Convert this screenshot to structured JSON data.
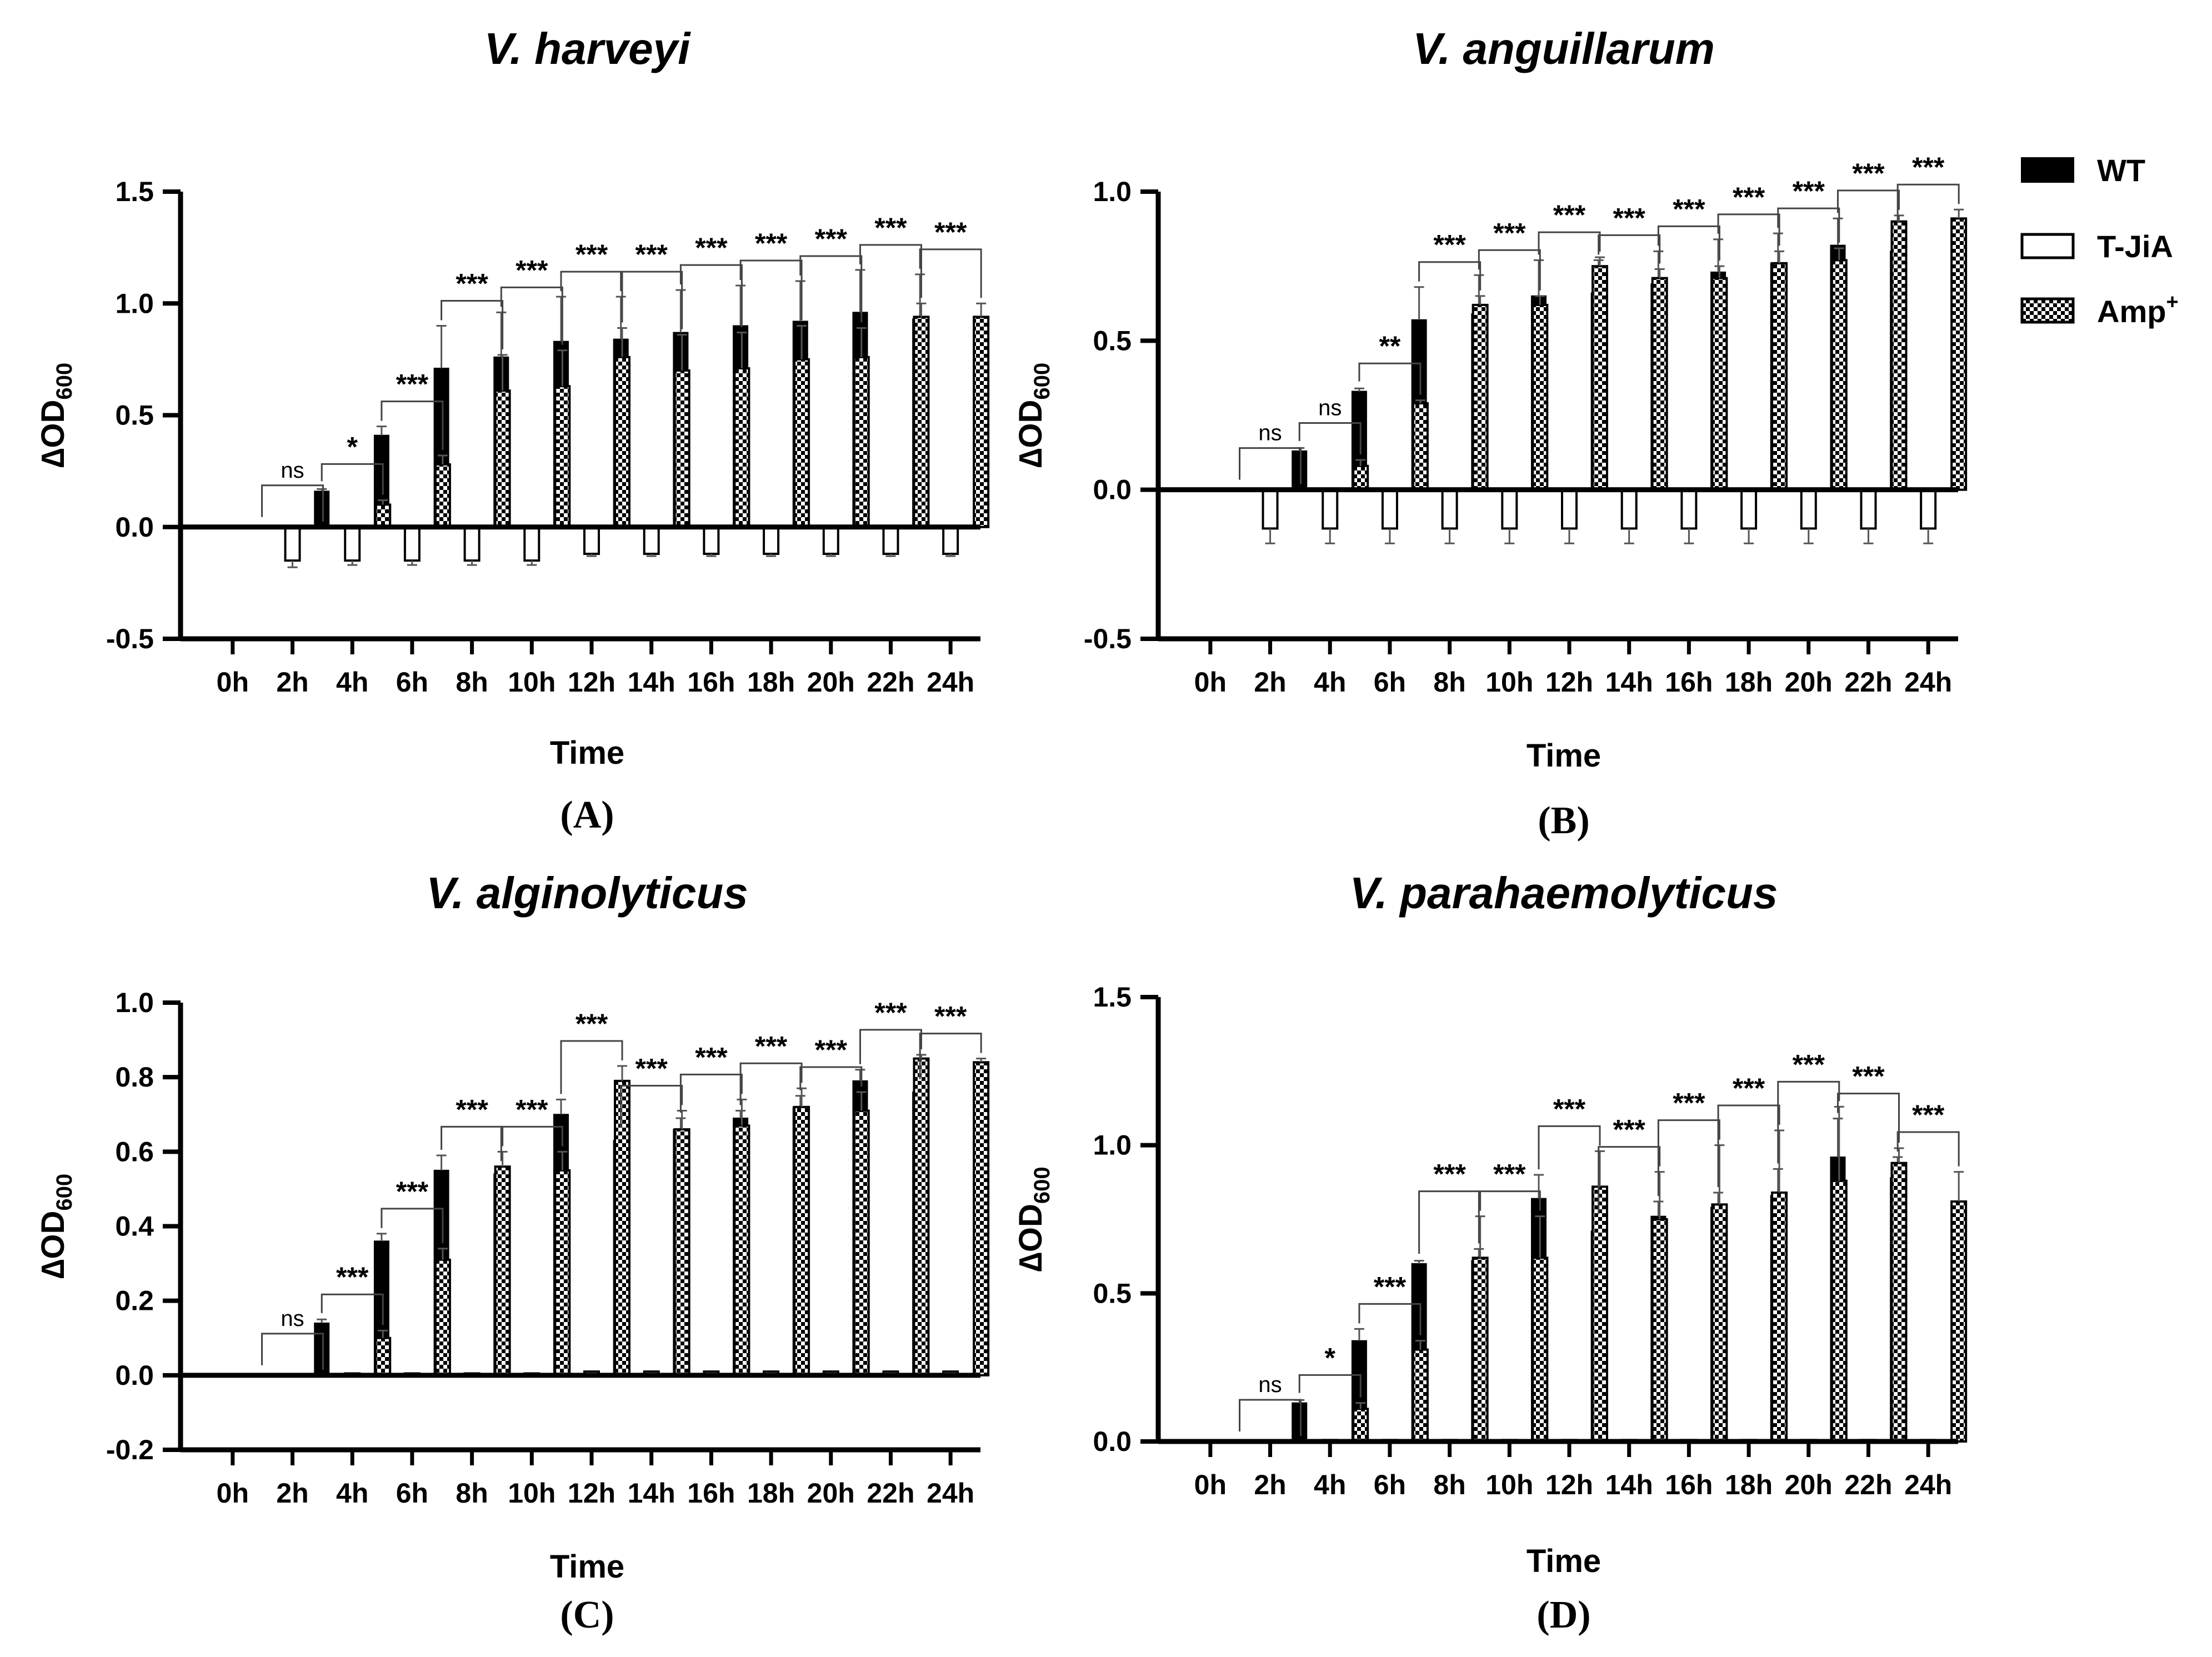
{
  "colors": {
    "wt": "#000000",
    "tjia": "#ffffff",
    "amp": "#000000",
    "axis": "#000000",
    "background": "#ffffff"
  },
  "legend": {
    "items": [
      {
        "key": "wt",
        "label": "WT",
        "pattern": "solid"
      },
      {
        "key": "tjia",
        "label": "T-JiA",
        "pattern": "open"
      },
      {
        "key": "amp",
        "label": "Amp",
        "sup": "+",
        "pattern": "checker"
      }
    ]
  },
  "chart_data": [
    {
      "id": "A",
      "panel_label": "(A)",
      "type": "bar",
      "title": "V. harveyi",
      "xlabel": "Time",
      "ylabel": "∆OD",
      "ylabel_sub": "600",
      "ylim": [
        -0.5,
        1.5
      ],
      "yticks": [
        -0.5,
        0.0,
        0.5,
        1.0,
        1.5
      ],
      "ytick_labels": [
        "-0.5",
        "0.0",
        "0.5",
        "1.0",
        "1.5"
      ],
      "categories": [
        "0h",
        "2h",
        "4h",
        "6h",
        "8h",
        "10h",
        "12h",
        "14h",
        "16h",
        "18h",
        "20h",
        "22h",
        "24h"
      ],
      "series": [
        {
          "name": "WT",
          "values": [
            0,
            0,
            0.16,
            0.41,
            0.71,
            0.76,
            0.83,
            0.84,
            0.87,
            0.9,
            0.92,
            0.96,
            0.93
          ],
          "errors": [
            0,
            0,
            0.01,
            0.04,
            0.19,
            0.2,
            0.2,
            0.19,
            0.19,
            0.18,
            0.18,
            0.19,
            0.2
          ]
        },
        {
          "name": "T-JiA",
          "values": [
            0,
            -0.15,
            -0.15,
            -0.15,
            -0.15,
            -0.15,
            -0.12,
            -0.12,
            -0.12,
            -0.12,
            -0.12,
            -0.12,
            -0.12
          ],
          "errors": [
            0,
            0.03,
            0.02,
            0.02,
            0.02,
            0.02,
            0.01,
            0.01,
            0.01,
            0.01,
            0.01,
            0.01,
            0.01
          ]
        },
        {
          "name": "Amp+",
          "values": [
            0,
            0,
            0.1,
            0.28,
            0.61,
            0.63,
            0.76,
            0.7,
            0.71,
            0.75,
            0.76,
            0.94,
            0.94
          ],
          "errors": [
            0,
            0,
            0.02,
            0.04,
            0.16,
            0.16,
            0.13,
            0.16,
            0.16,
            0.15,
            0.13,
            0.06,
            0.06
          ]
        }
      ],
      "significance": [
        "",
        "ns",
        "*",
        "***",
        "***",
        "***",
        "***",
        "***",
        "***",
        "***",
        "***",
        "***",
        "***"
      ]
    },
    {
      "id": "B",
      "panel_label": "(B)",
      "type": "bar",
      "title": "V. anguillarum",
      "xlabel": "Time",
      "ylabel": "∆OD",
      "ylabel_sub": "600",
      "ylim": [
        -0.5,
        1.0
      ],
      "yticks": [
        -0.5,
        0.0,
        0.5,
        1.0
      ],
      "ytick_labels": [
        "-0.5",
        "0.0",
        "0.5",
        "1.0"
      ],
      "categories": [
        "0h",
        "2h",
        "4h",
        "6h",
        "8h",
        "10h",
        "12h",
        "14h",
        "16h",
        "18h",
        "20h",
        "22h",
        "24h"
      ],
      "series": [
        {
          "name": "WT",
          "values": [
            0,
            0,
            0.13,
            0.33,
            0.57,
            0.59,
            0.65,
            0.66,
            0.69,
            0.73,
            0.76,
            0.82,
            0.8
          ],
          "errors": [
            0,
            0,
            0.01,
            0.01,
            0.11,
            0.13,
            0.12,
            0.11,
            0.11,
            0.11,
            0.1,
            0.09,
            0.08
          ]
        },
        {
          "name": "T-JiA",
          "values": [
            0,
            -0.13,
            -0.13,
            -0.13,
            -0.13,
            -0.13,
            -0.13,
            -0.13,
            -0.13,
            -0.13,
            -0.13,
            -0.13,
            -0.13
          ],
          "errors": [
            0,
            0.05,
            0.05,
            0.05,
            0.05,
            0.05,
            0.05,
            0.05,
            0.05,
            0.05,
            0.05,
            0.05,
            0.05
          ]
        },
        {
          "name": "Amp+",
          "values": [
            0,
            0,
            0.08,
            0.29,
            0.62,
            0.62,
            0.75,
            0.71,
            0.71,
            0.76,
            0.77,
            0.9,
            0.91
          ],
          "errors": [
            0,
            0,
            0.02,
            0.01,
            0.03,
            0.03,
            0.03,
            0.03,
            0.04,
            0.04,
            0.04,
            0.02,
            0.03
          ]
        }
      ],
      "significance": [
        "",
        "ns",
        "ns",
        "**",
        "***",
        "***",
        "***",
        "***",
        "***",
        "***",
        "***",
        "***",
        "***"
      ]
    },
    {
      "id": "C",
      "panel_label": "(C)",
      "type": "bar",
      "title": "V. alginolyticus",
      "xlabel": "Time",
      "ylabel": "∆OD",
      "ylabel_sub": "600",
      "ylim": [
        -0.2,
        1.0
      ],
      "yticks": [
        -0.2,
        0.0,
        0.2,
        0.4,
        0.6,
        0.8,
        1.0
      ],
      "ytick_labels": [
        "-0.2",
        "0.0",
        "0.2",
        "0.4",
        "0.6",
        "0.8",
        "1.0"
      ],
      "categories": [
        "0h",
        "2h",
        "4h",
        "6h",
        "8h",
        "10h",
        "12h",
        "14h",
        "16h",
        "18h",
        "20h",
        "22h",
        "24h"
      ],
      "series": [
        {
          "name": "WT",
          "values": [
            0,
            0,
            0.14,
            0.36,
            0.55,
            0.54,
            0.7,
            0.63,
            0.66,
            0.69,
            0.72,
            0.79,
            0.76
          ],
          "errors": [
            0,
            0,
            0.01,
            0.02,
            0.04,
            0.02,
            0.04,
            0.02,
            0.03,
            0.02,
            0.03,
            0.03,
            0.02
          ]
        },
        {
          "name": "T-JiA",
          "values": [
            0,
            0,
            0.005,
            0.005,
            0.005,
            0.005,
            0.01,
            0.01,
            0.01,
            0.01,
            0.01,
            0.01,
            0.01
          ],
          "errors": [
            0,
            0,
            0,
            0,
            0,
            0,
            0,
            0,
            0,
            0,
            0,
            0,
            0
          ]
        },
        {
          "name": "Amp+",
          "values": [
            0,
            0,
            0.1,
            0.31,
            0.56,
            0.55,
            0.79,
            0.66,
            0.67,
            0.72,
            0.71,
            0.85,
            0.84
          ],
          "errors": [
            0,
            0,
            0.02,
            0.03,
            0.04,
            0.05,
            0.04,
            0.05,
            0.07,
            0.05,
            0.05,
            0.01,
            0.01
          ]
        }
      ],
      "significance": [
        "",
        "ns",
        "***",
        "***",
        "***",
        "***",
        "***",
        "***",
        "***",
        "***",
        "***",
        "***",
        "***"
      ]
    },
    {
      "id": "D",
      "panel_label": "(D)",
      "type": "bar",
      "title": "V. parahaemolyticus",
      "xlabel": "Time",
      "ylabel": "∆OD",
      "ylabel_sub": "600",
      "ylim": [
        0.0,
        1.5
      ],
      "yticks": [
        0.0,
        0.5,
        1.0,
        1.5
      ],
      "ytick_labels": [
        "0.0",
        "0.5",
        "1.0",
        "1.5"
      ],
      "categories": [
        "0h",
        "2h",
        "4h",
        "6h",
        "8h",
        "10h",
        "12h",
        "14h",
        "16h",
        "18h",
        "20h",
        "22h",
        "24h"
      ],
      "series": [
        {
          "name": "WT",
          "values": [
            0,
            0,
            0.13,
            0.34,
            0.6,
            0.61,
            0.82,
            0.71,
            0.76,
            0.79,
            0.83,
            0.96,
            0.89
          ],
          "errors": [
            0,
            0,
            0.01,
            0.04,
            0.01,
            0.04,
            0.08,
            0.04,
            0.05,
            0.05,
            0.09,
            0.13,
            0.07
          ]
        },
        {
          "name": "T-JiA",
          "values": [
            0,
            0,
            0.005,
            0.005,
            0.005,
            0.005,
            0.005,
            0.005,
            0.005,
            0.005,
            0.005,
            0.005,
            0.005
          ],
          "errors": [
            0,
            0,
            0,
            0,
            0,
            0,
            0,
            0,
            0,
            0,
            0,
            0,
            0
          ]
        },
        {
          "name": "Amp+",
          "values": [
            0,
            0,
            0.11,
            0.31,
            0.62,
            0.62,
            0.86,
            0.75,
            0.8,
            0.84,
            0.88,
            0.94,
            0.81
          ],
          "errors": [
            0,
            0,
            0.02,
            0.03,
            0.14,
            0.14,
            0.12,
            0.16,
            0.2,
            0.21,
            0.25,
            0.05,
            0.1
          ]
        }
      ],
      "significance": [
        "",
        "ns",
        "*",
        "***",
        "***",
        "***",
        "***",
        "***",
        "***",
        "***",
        "***",
        "***",
        "***"
      ]
    }
  ]
}
